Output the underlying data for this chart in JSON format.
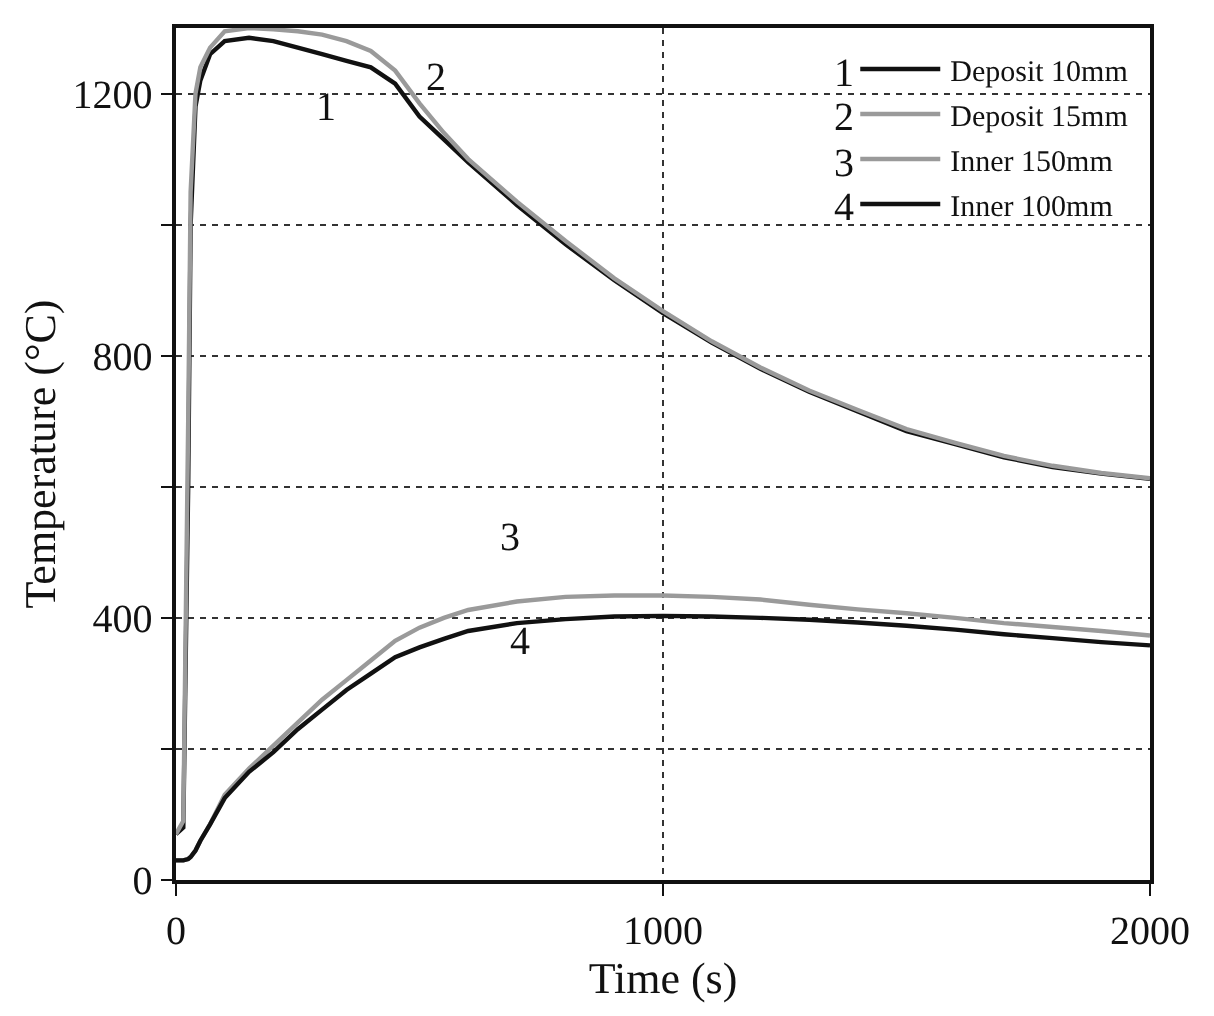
{
  "chart_data": {
    "type": "line",
    "xlabel": "Time (s)",
    "ylabel": "Temperature (°C)",
    "xlim": [
      0,
      2000
    ],
    "xticks": [
      0,
      1000,
      2000
    ],
    "ylim": [
      0,
      1300
    ],
    "yticks": [
      0,
      {
        "value": 200,
        "label": null
      },
      400,
      {
        "value": 600,
        "label": null
      },
      800,
      {
        "value": 1000,
        "label": null
      },
      1200
    ],
    "grid": true,
    "legend": "top right",
    "line_style": "solid",
    "marker": "none",
    "x": [
      0,
      15,
      25,
      30,
      40,
      50,
      70,
      100,
      150,
      200,
      250,
      300,
      350,
      400,
      450,
      500,
      550,
      600,
      700,
      800,
      900,
      1000,
      1100,
      1200,
      1300,
      1400,
      1500,
      1600,
      1700,
      1800,
      1900,
      2000
    ],
    "series": [
      {
        "name": "Deposit 10mm",
        "color": "#111111",
        "values": [
          70,
          80,
          600,
          1000,
          1180,
          1220,
          1260,
          1280,
          1285,
          1280,
          1270,
          1260,
          1250,
          1240,
          1215,
          1165,
          1130,
          1095,
          1030,
          970,
          915,
          865,
          820,
          780,
          745,
          715,
          685,
          665,
          645,
          630,
          620,
          612
        ]
      },
      {
        "name": "Deposit 15mm",
        "color": "#9a9a9a",
        "values": [
          70,
          90,
          700,
          1050,
          1200,
          1240,
          1270,
          1295,
          1300,
          1298,
          1295,
          1290,
          1280,
          1265,
          1235,
          1185,
          1140,
          1100,
          1035,
          975,
          918,
          868,
          822,
          782,
          747,
          717,
          688,
          667,
          647,
          632,
          621,
          613
        ]
      },
      {
        "name": "Inner 150mm",
        "color": "#9a9a9a",
        "values": [
          30,
          30,
          32,
          35,
          45,
          60,
          85,
          130,
          170,
          205,
          240,
          275,
          305,
          335,
          365,
          385,
          400,
          412,
          425,
          432,
          434,
          434,
          432,
          428,
          420,
          413,
          407,
          400,
          392,
          386,
          380,
          373
        ]
      },
      {
        "name": "Inner 100mm",
        "color": "#111111",
        "values": [
          30,
          30,
          32,
          35,
          45,
          60,
          85,
          125,
          165,
          195,
          230,
          260,
          290,
          315,
          340,
          355,
          368,
          380,
          392,
          398,
          402,
          403,
          402,
          400,
          397,
          393,
          388,
          382,
          375,
          369,
          363,
          358
        ]
      }
    ],
    "annotations": [
      "1",
      "2",
      "3",
      "4",
      "1",
      "2",
      "3",
      "4"
    ]
  }
}
